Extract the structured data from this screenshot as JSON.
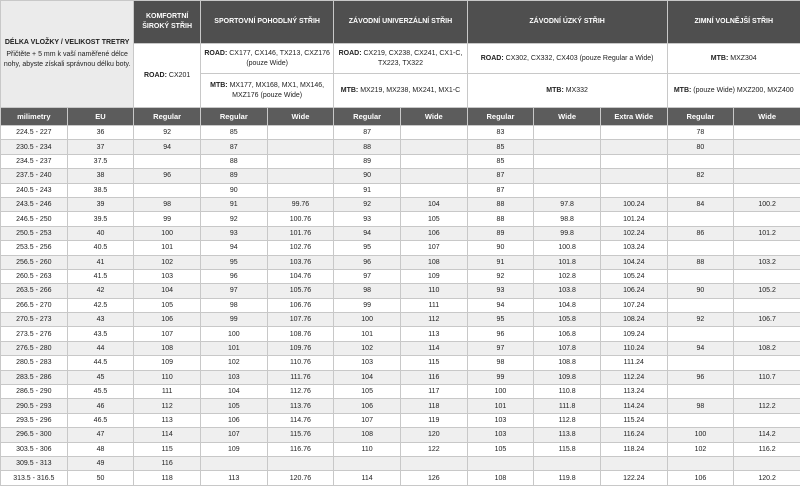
{
  "header": {
    "title": "DÉLKA VLOŽKY / VELIKOST TRETRY",
    "note": "Přičtěte + 5 mm k vaší naměřené délce nohy, abyste získali správnou délku boty.",
    "groups": [
      {
        "title": "KOMFORTNÍ ŠIROKÝ STŘIH",
        "lines": [
          {
            "label": "ROAD:",
            "text": "CX201"
          }
        ]
      },
      {
        "title": "SPORTOVNÍ POHODLNÝ STŘIH",
        "lines": [
          {
            "label": "ROAD:",
            "text": "CX177, CX146, TX213, CXZ176 (pouze Wide)"
          },
          {
            "label": "MTB:",
            "text": "MX177, MX168, MX1, MX146, MXZ176 (pouze Wide)"
          }
        ]
      },
      {
        "title": "ZÁVODNÍ UNIVERZÁLNÍ STŘIH",
        "lines": [
          {
            "label": "ROAD:",
            "text": "CX219, CX238, CX241, CX1-C, TX223, TX322"
          },
          {
            "label": "MTB:",
            "text": "MX219, MX238, MX241, MX1-C"
          }
        ]
      },
      {
        "title": "ZÁVODNÍ ÚZKÝ STŘIH",
        "lines": [
          {
            "label": "ROAD:",
            "text": "CX302, CX332, CX403 (pouze Regular a Wide)"
          },
          {
            "label": "MTB:",
            "text": "MX332"
          }
        ]
      },
      {
        "title": "ZIMNÍ VOLNĚJŠÍ STŘIH",
        "lines": [
          {
            "label": "MTB:",
            "text": "MXZ304"
          },
          {
            "label": "MTB:",
            "text": "(pouze Wide) MXZ200, MXZ400"
          }
        ]
      }
    ],
    "columns": [
      "milimetry",
      "EU",
      "Regular",
      "Regular",
      "Wide",
      "Regular",
      "Wide",
      "Regular",
      "Wide",
      "Extra Wide",
      "Regular",
      "Wide"
    ]
  },
  "table": {
    "rows": [
      [
        "224.5 - 227",
        "36",
        "92",
        "85",
        null,
        "87",
        null,
        "83",
        null,
        null,
        "78",
        null
      ],
      [
        "230.5 - 234",
        "37",
        "94",
        "87",
        null,
        "88",
        null,
        "85",
        null,
        null,
        "80",
        null
      ],
      [
        "234.5 - 237",
        "37.5",
        null,
        "88",
        null,
        "89",
        null,
        "85",
        null,
        null,
        null,
        null
      ],
      [
        "237.5 - 240",
        "38",
        "96",
        "89",
        null,
        "90",
        null,
        "87",
        null,
        null,
        "82",
        null
      ],
      [
        "240.5 - 243",
        "38.5",
        null,
        "90",
        null,
        "91",
        null,
        "87",
        null,
        null,
        null,
        null
      ],
      [
        "243.5 - 246",
        "39",
        "98",
        "91",
        "99.76",
        "92",
        "104",
        "88",
        "97.8",
        "100.24",
        "84",
        "100.2"
      ],
      [
        "246.5 - 250",
        "39.5",
        "99",
        "92",
        "100.76",
        "93",
        "105",
        "88",
        "98.8",
        "101.24",
        null,
        null
      ],
      [
        "250.5 - 253",
        "40",
        "100",
        "93",
        "101.76",
        "94",
        "106",
        "89",
        "99.8",
        "102.24",
        "86",
        "101.2"
      ],
      [
        "253.5 - 256",
        "40.5",
        "101",
        "94",
        "102.76",
        "95",
        "107",
        "90",
        "100.8",
        "103.24",
        null,
        null
      ],
      [
        "256.5 - 260",
        "41",
        "102",
        "95",
        "103.76",
        "96",
        "108",
        "91",
        "101.8",
        "104.24",
        "88",
        "103.2"
      ],
      [
        "260.5 - 263",
        "41.5",
        "103",
        "96",
        "104.76",
        "97",
        "109",
        "92",
        "102.8",
        "105.24",
        null,
        null
      ],
      [
        "263.5 - 266",
        "42",
        "104",
        "97",
        "105.76",
        "98",
        "110",
        "93",
        "103.8",
        "106.24",
        "90",
        "105.2"
      ],
      [
        "266.5 - 270",
        "42.5",
        "105",
        "98",
        "106.76",
        "99",
        "111",
        "94",
        "104.8",
        "107.24",
        null,
        null
      ],
      [
        "270.5 - 273",
        "43",
        "106",
        "99",
        "107.76",
        "100",
        "112",
        "95",
        "105.8",
        "108.24",
        "92",
        "106.7"
      ],
      [
        "273.5 - 276",
        "43.5",
        "107",
        "100",
        "108.76",
        "101",
        "113",
        "96",
        "106.8",
        "109.24",
        null,
        null
      ],
      [
        "276.5 - 280",
        "44",
        "108",
        "101",
        "109.76",
        "102",
        "114",
        "97",
        "107.8",
        "110.24",
        "94",
        "108.2"
      ],
      [
        "280.5 - 283",
        "44.5",
        "109",
        "102",
        "110.76",
        "103",
        "115",
        "98",
        "108.8",
        "111.24",
        null,
        null
      ],
      [
        "283.5 - 286",
        "45",
        "110",
        "103",
        "111.76",
        "104",
        "116",
        "99",
        "109.8",
        "112.24",
        "96",
        "110.7"
      ],
      [
        "286.5 - 290",
        "45.5",
        "111",
        "104",
        "112.76",
        "105",
        "117",
        "100",
        "110.8",
        "113.24",
        null,
        null
      ],
      [
        "290.5 - 293",
        "46",
        "112",
        "105",
        "113.76",
        "106",
        "118",
        "101",
        "111.8",
        "114.24",
        "98",
        "112.2"
      ],
      [
        "293.5 - 296",
        "46.5",
        "113",
        "106",
        "114.76",
        "107",
        "119",
        "103",
        "112.8",
        "115.24",
        null,
        null
      ],
      [
        "296.5 - 300",
        "47",
        "114",
        "107",
        "115.76",
        "108",
        "120",
        "103",
        "113.8",
        "116.24",
        "100",
        "114.2"
      ],
      [
        "303.5 - 306",
        "48",
        "115",
        "109",
        "116.76",
        "110",
        "122",
        "105",
        "115.8",
        "118.24",
        "102",
        "116.2"
      ],
      [
        "309.5 - 313",
        "49",
        "116",
        null,
        null,
        null,
        null,
        null,
        null,
        null,
        null,
        null
      ],
      [
        "313.5 - 316.5",
        "50",
        "118",
        "113",
        "120.76",
        "114",
        "126",
        "108",
        "119.8",
        "122.24",
        "106",
        "120.2"
      ]
    ]
  }
}
